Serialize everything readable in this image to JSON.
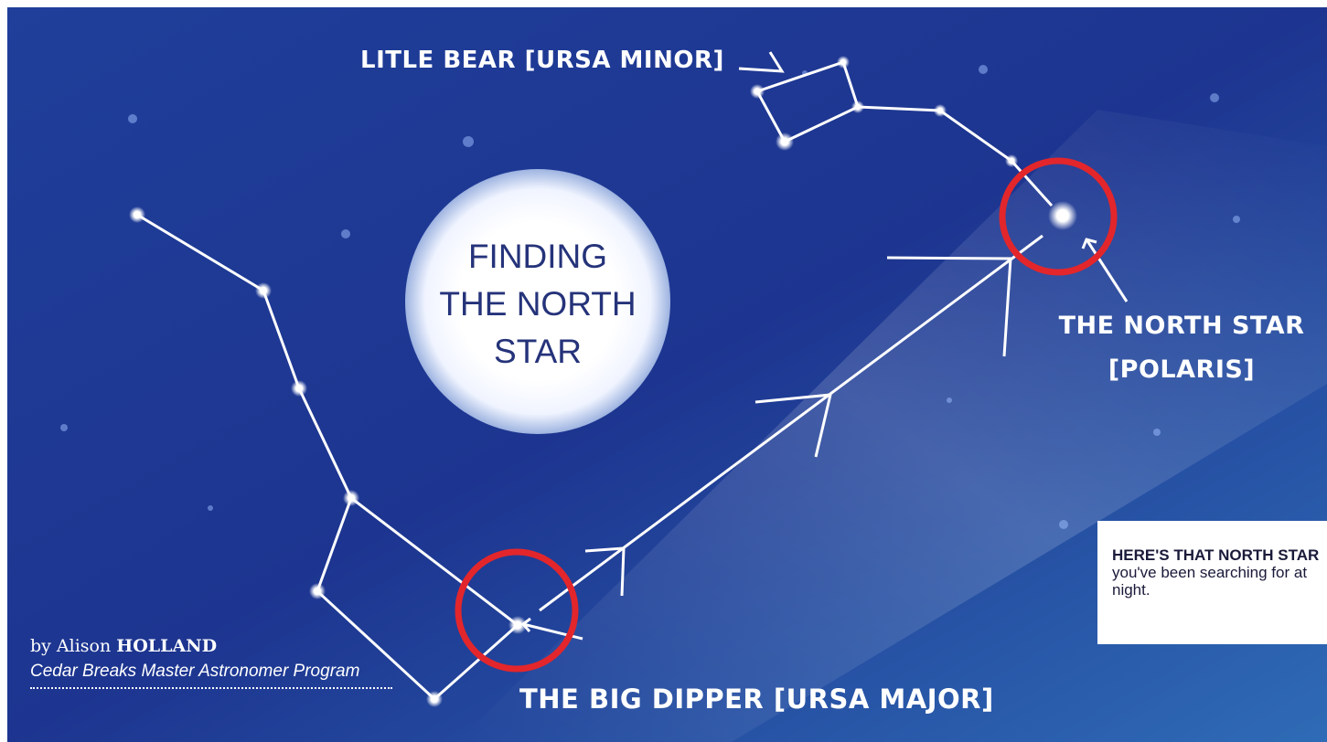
{
  "title": {
    "lines": [
      "FINDING",
      "THE NORTH",
      "STAR"
    ]
  },
  "labels": {
    "little_bear": "LITLE BEAR [URSA MINOR]",
    "north_star": [
      "THE NORTH STAR",
      "[POLARIS]"
    ],
    "big_dipper": "THE BIG DIPPER [URSA MAJOR]"
  },
  "caption": {
    "bold": "HERE'S THAT NORTH STAR",
    "text": "you've been searching for at night."
  },
  "byline": {
    "prefix": "by Alison",
    "name": "HOLLAND",
    "affiliation": "Cedar Breaks Master Astronomer Program"
  }
}
